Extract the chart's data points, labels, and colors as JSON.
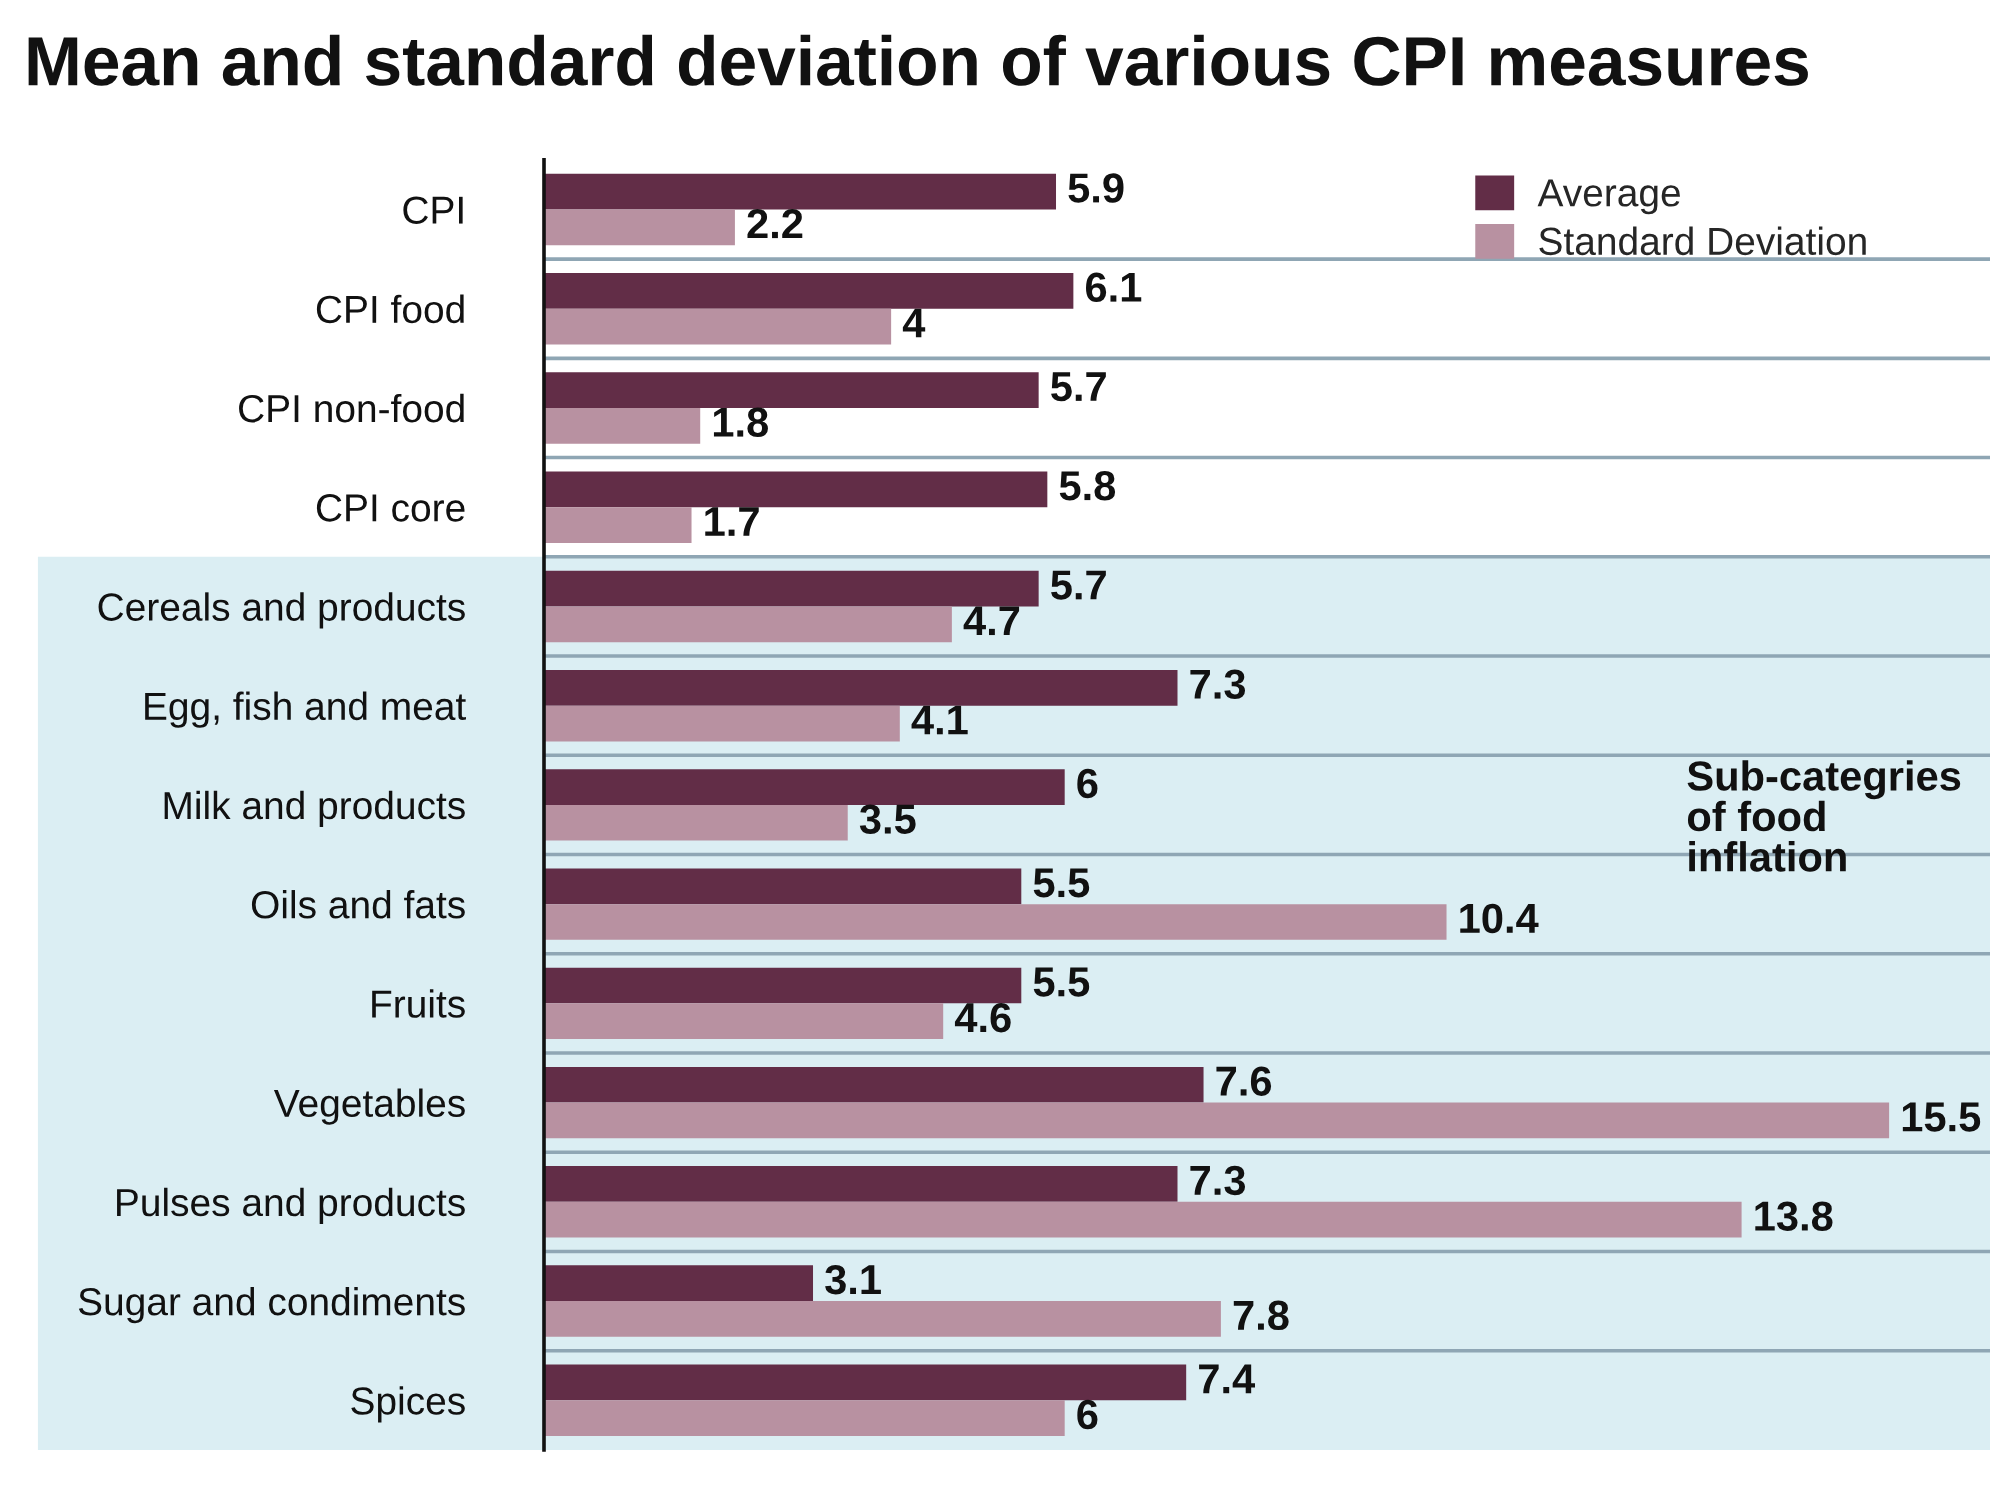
{
  "chart_data": {
    "type": "bar",
    "orientation": "horizontal",
    "title": "Mean and standard deviation of various CPI measures",
    "categories": [
      "CPI",
      "CPI food",
      "CPI non-food",
      "CPI core",
      "Cereals and products",
      "Egg, fish and meat",
      "Milk and products",
      "Oils and fats",
      "Fruits",
      "Vegetables",
      "Pulses and products",
      "Sugar and condiments",
      "Spices"
    ],
    "series": [
      {
        "name": "Average",
        "color": "#622d47",
        "values": [
          5.9,
          6.1,
          5.7,
          5.8,
          5.7,
          7.3,
          6,
          5.5,
          5.5,
          7.6,
          7.3,
          3.1,
          7.4
        ]
      },
      {
        "name": "Standard Deviation",
        "color": "#b891a1",
        "values": [
          2.2,
          4,
          1.8,
          1.7,
          4.7,
          4.1,
          3.5,
          10.4,
          4.6,
          15.5,
          13.8,
          7.8,
          6
        ]
      }
    ],
    "bands": [
      {
        "axis": "y",
        "from": "Cereals and products",
        "to": "Spices",
        "label": "Sub-categries\nof food\ninflation",
        "color": "#dbeef3"
      }
    ],
    "data_labels": true,
    "legend": "top right",
    "grid": "y",
    "tick_labels": "y"
  }
}
